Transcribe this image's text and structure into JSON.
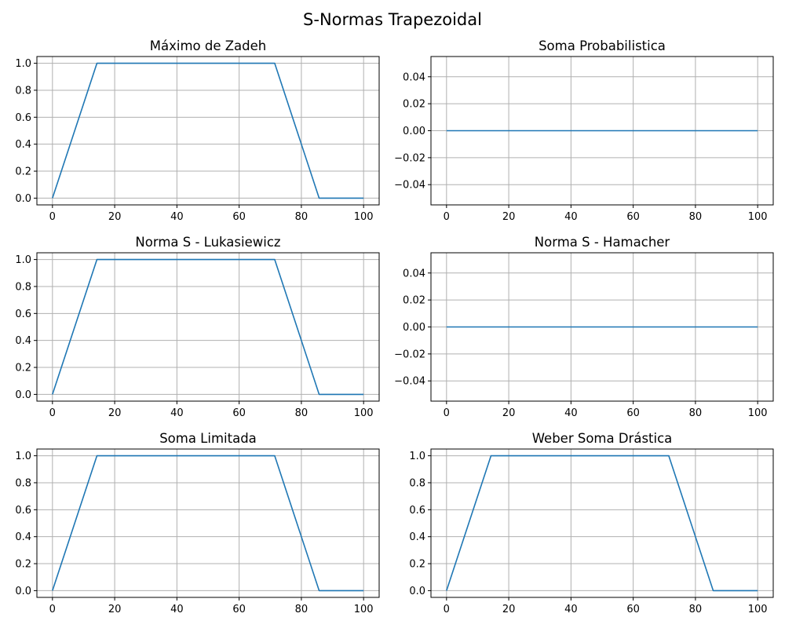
{
  "figure": {
    "suptitle": "S-Normas Trapezoidal",
    "line_color": "#1f77b4",
    "grid": true
  },
  "chart_data": [
    {
      "type": "line",
      "title": "Máximo de Zadeh",
      "x": [
        0,
        14.29,
        71.43,
        85.71,
        100
      ],
      "y": [
        0,
        1,
        1,
        0,
        0
      ],
      "xlim": [
        -5,
        105
      ],
      "ylim": [
        -0.05,
        1.05
      ],
      "xticks": [
        0,
        20,
        40,
        60,
        80,
        100
      ],
      "yticks": [
        0.0,
        0.2,
        0.4,
        0.6,
        0.8,
        1.0
      ],
      "xtick_labels": [
        "0",
        "20",
        "40",
        "60",
        "80",
        "100"
      ],
      "ytick_labels": [
        "0.0",
        "0.2",
        "0.4",
        "0.6",
        "0.8",
        "1.0"
      ]
    },
    {
      "type": "line",
      "title": "Soma Probabilistica",
      "x": [
        0,
        100
      ],
      "y": [
        0,
        0
      ],
      "xlim": [
        -5,
        105
      ],
      "ylim": [
        -0.055,
        0.055
      ],
      "xticks": [
        0,
        20,
        40,
        60,
        80,
        100
      ],
      "yticks": [
        -0.04,
        -0.02,
        0.0,
        0.02,
        0.04
      ],
      "xtick_labels": [
        "0",
        "20",
        "40",
        "60",
        "80",
        "100"
      ],
      "ytick_labels": [
        "−0.04",
        "−0.02",
        "0.00",
        "0.02",
        "0.04"
      ]
    },
    {
      "type": "line",
      "title": "Norma S - Lukasiewicz",
      "x": [
        0,
        14.29,
        71.43,
        85.71,
        100
      ],
      "y": [
        0,
        1,
        1,
        0,
        0
      ],
      "xlim": [
        -5,
        105
      ],
      "ylim": [
        -0.05,
        1.05
      ],
      "xticks": [
        0,
        20,
        40,
        60,
        80,
        100
      ],
      "yticks": [
        0.0,
        0.2,
        0.4,
        0.6,
        0.8,
        1.0
      ],
      "xtick_labels": [
        "0",
        "20",
        "40",
        "60",
        "80",
        "100"
      ],
      "ytick_labels": [
        "0.0",
        "0.2",
        "0.4",
        "0.6",
        "0.8",
        "1.0"
      ]
    },
    {
      "type": "line",
      "title": "Norma S - Hamacher",
      "x": [
        0,
        100
      ],
      "y": [
        0,
        0
      ],
      "xlim": [
        -5,
        105
      ],
      "ylim": [
        -0.055,
        0.055
      ],
      "xticks": [
        0,
        20,
        40,
        60,
        80,
        100
      ],
      "yticks": [
        -0.04,
        -0.02,
        0.0,
        0.02,
        0.04
      ],
      "xtick_labels": [
        "0",
        "20",
        "40",
        "60",
        "80",
        "100"
      ],
      "ytick_labels": [
        "−0.04",
        "−0.02",
        "0.00",
        "0.02",
        "0.04"
      ]
    },
    {
      "type": "line",
      "title": "Soma Limitada",
      "x": [
        0,
        14.29,
        71.43,
        85.71,
        100
      ],
      "y": [
        0,
        1,
        1,
        0,
        0
      ],
      "xlim": [
        -5,
        105
      ],
      "ylim": [
        -0.05,
        1.05
      ],
      "xticks": [
        0,
        20,
        40,
        60,
        80,
        100
      ],
      "yticks": [
        0.0,
        0.2,
        0.4,
        0.6,
        0.8,
        1.0
      ],
      "xtick_labels": [
        "0",
        "20",
        "40",
        "60",
        "80",
        "100"
      ],
      "ytick_labels": [
        "0.0",
        "0.2",
        "0.4",
        "0.6",
        "0.8",
        "1.0"
      ]
    },
    {
      "type": "line",
      "title": "Weber Soma Drástica",
      "x": [
        0,
        14.29,
        71.43,
        85.71,
        100
      ],
      "y": [
        0,
        1,
        1,
        0,
        0
      ],
      "xlim": [
        -5,
        105
      ],
      "ylim": [
        -0.05,
        1.05
      ],
      "xticks": [
        0,
        20,
        40,
        60,
        80,
        100
      ],
      "yticks": [
        0.0,
        0.2,
        0.4,
        0.6,
        0.8,
        1.0
      ],
      "xtick_labels": [
        "0",
        "20",
        "40",
        "60",
        "80",
        "100"
      ],
      "ytick_labels": [
        "0.0",
        "0.2",
        "0.4",
        "0.6",
        "0.8",
        "1.0"
      ]
    }
  ]
}
